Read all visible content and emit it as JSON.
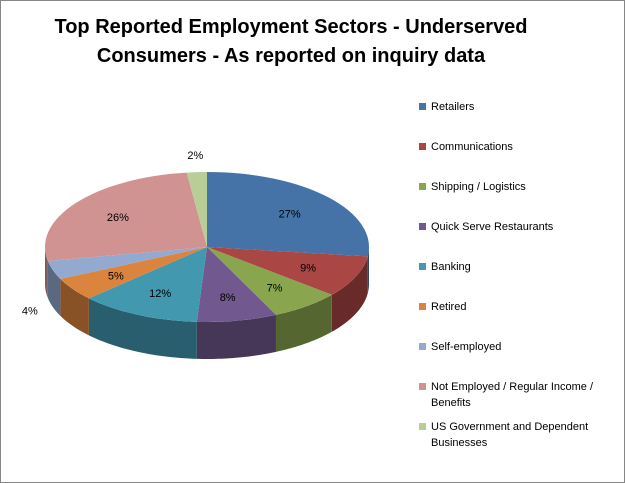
{
  "chart_data": {
    "type": "pie",
    "style": "3d",
    "title": "Top Reported Employment Sectors - Underserved Consumers - As reported on inquiry data",
    "title_lines": [
      "Top Reported Employment Sectors - Underserved",
      "Consumers - As reported on inquiry data"
    ],
    "legend_position": "right",
    "categories": [
      "Retailers",
      "Communications",
      "Shipping / Logistics",
      "Quick Serve Restaurants",
      "Banking",
      "Retired",
      "Self-employed",
      "Not Employed / Regular Income / Benefits",
      "US Government and Dependent Businesses"
    ],
    "values": [
      27,
      9,
      7,
      8,
      12,
      5,
      4,
      26,
      2
    ],
    "data_labels": [
      "27%",
      "9%",
      "7%",
      "8%",
      "12%",
      "5%",
      "4%",
      "26%",
      "2%"
    ],
    "colors": [
      "#4572a7",
      "#aa4643",
      "#89a54e",
      "#71588f",
      "#4198af",
      "#db843d",
      "#93a9cf",
      "#d09392",
      "#b9cd96"
    ]
  }
}
